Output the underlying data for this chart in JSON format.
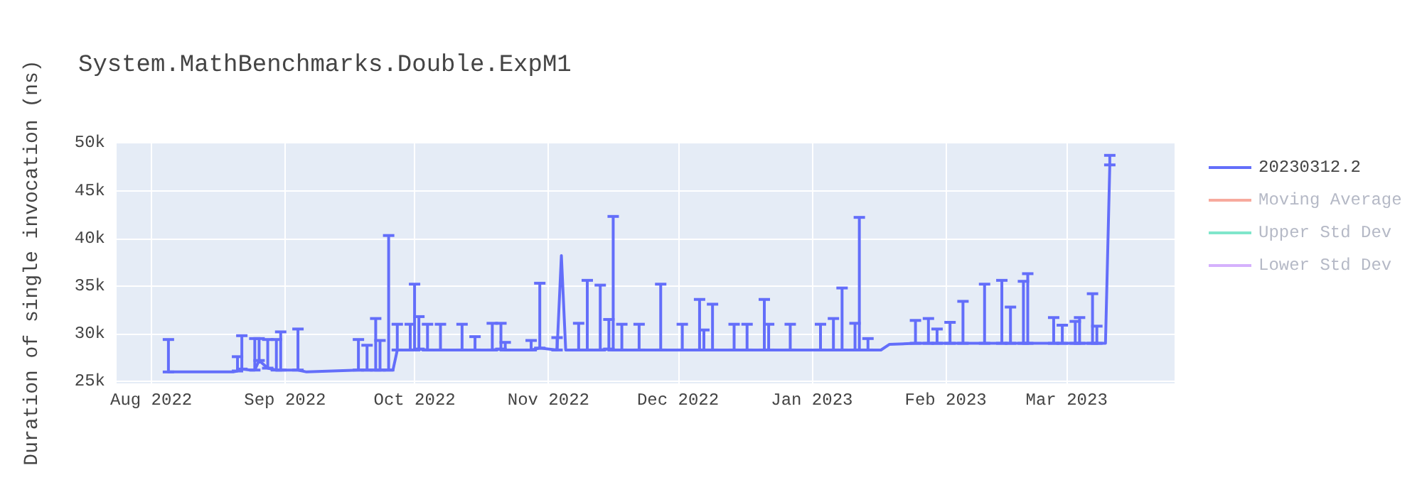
{
  "chart_data": {
    "type": "line",
    "title": "System.MathBenchmarks.Double.ExpM1",
    "ylabel": "Duration of single invocation (ns)",
    "x": [
      "2022-08-05",
      "2022-08-20",
      "2022-08-21",
      "2022-08-22",
      "2022-08-24",
      "2022-08-25",
      "2022-08-26",
      "2022-08-28",
      "2022-08-30",
      "2022-08-31",
      "2022-09-04",
      "2022-09-06",
      "2022-09-18",
      "2022-09-20",
      "2022-09-22",
      "2022-09-23",
      "2022-09-25",
      "2022-09-26",
      "2022-09-27",
      "2022-09-30",
      "2022-10-01",
      "2022-10-02",
      "2022-10-04",
      "2022-10-07",
      "2022-10-12",
      "2022-10-15",
      "2022-10-19",
      "2022-10-21",
      "2022-10-22",
      "2022-10-28",
      "2022-10-30",
      "2022-11-03",
      "2022-11-04",
      "2022-11-05",
      "2022-11-08",
      "2022-11-10",
      "2022-11-13",
      "2022-11-15",
      "2022-11-16",
      "2022-11-18",
      "2022-11-22",
      "2022-11-27",
      "2022-12-02",
      "2022-12-06",
      "2022-12-07",
      "2022-12-09",
      "2022-12-14",
      "2022-12-17",
      "2022-12-21",
      "2022-12-22",
      "2022-12-27",
      "2023-01-03",
      "2023-01-06",
      "2023-01-08",
      "2023-01-11",
      "2023-01-12",
      "2023-01-14",
      "2023-01-17",
      "2023-01-19",
      "2023-01-25",
      "2023-01-28",
      "2023-01-30",
      "2023-02-02",
      "2023-02-05",
      "2023-02-10",
      "2023-02-14",
      "2023-02-16",
      "2023-02-19",
      "2023-02-20",
      "2023-02-26",
      "2023-02-28",
      "2023-03-03",
      "2023-03-04",
      "2023-03-07",
      "2023-03-08",
      "2023-03-10",
      "2023-03-11"
    ],
    "series": [
      {
        "name": "20230312.2",
        "color": "#636efa",
        "values": [
          26000,
          26000,
          26100,
          26300,
          26200,
          26200,
          27200,
          26400,
          26200,
          26200,
          26200,
          26000,
          26200,
          26200,
          26200,
          26200,
          26200,
          26200,
          28300,
          28300,
          28300,
          28400,
          28300,
          28300,
          28300,
          28300,
          28300,
          28400,
          28300,
          28300,
          28500,
          28300,
          38200,
          28300,
          28300,
          28300,
          28300,
          28400,
          28300,
          28300,
          28300,
          28300,
          28300,
          28300,
          28300,
          28300,
          28300,
          28300,
          28300,
          28300,
          28300,
          28300,
          28300,
          28300,
          28300,
          28300,
          28300,
          28300,
          28900,
          29000,
          29000,
          29000,
          29000,
          29000,
          29000,
          29000,
          29000,
          29000,
          29000,
          29000,
          29000,
          29000,
          29000,
          29000,
          29000,
          29000,
          47700
        ],
        "errors": [
          [
            26000,
            29400
          ],
          null,
          [
            26100,
            27600
          ],
          [
            26300,
            29800
          ],
          null,
          [
            26200,
            29500
          ],
          [
            27200,
            29500
          ],
          [
            26400,
            29400
          ],
          [
            26200,
            29400
          ],
          [
            26200,
            30200
          ],
          [
            26200,
            30500
          ],
          null,
          [
            26200,
            29400
          ],
          [
            26200,
            28800
          ],
          [
            26200,
            31600
          ],
          [
            26200,
            29300
          ],
          [
            26200,
            40300
          ],
          null,
          [
            28300,
            31000
          ],
          [
            28300,
            31000
          ],
          [
            28300,
            35200
          ],
          [
            28400,
            31800
          ],
          [
            28300,
            31000
          ],
          [
            28300,
            31000
          ],
          [
            28300,
            31000
          ],
          [
            28300,
            29700
          ],
          [
            28300,
            31100
          ],
          [
            28400,
            31100
          ],
          [
            28300,
            29100
          ],
          [
            28300,
            29300
          ],
          [
            28500,
            35300
          ],
          [
            28300,
            29600
          ],
          null,
          null,
          [
            28300,
            31100
          ],
          [
            28300,
            35600
          ],
          [
            28300,
            35100
          ],
          [
            28400,
            31500
          ],
          [
            28300,
            42300
          ],
          [
            28300,
            31000
          ],
          [
            28300,
            31000
          ],
          [
            28300,
            35200
          ],
          [
            28300,
            31000
          ],
          [
            28300,
            33600
          ],
          [
            28300,
            30400
          ],
          [
            28300,
            33100
          ],
          [
            28300,
            31000
          ],
          [
            28300,
            31000
          ],
          [
            28300,
            33600
          ],
          [
            28300,
            31000
          ],
          [
            28300,
            31000
          ],
          [
            28300,
            31000
          ],
          [
            28300,
            31600
          ],
          [
            28300,
            34800
          ],
          [
            28300,
            31100
          ],
          [
            28300,
            42200
          ],
          [
            28300,
            29500
          ],
          null,
          null,
          [
            29000,
            31400
          ],
          [
            29000,
            31600
          ],
          [
            29000,
            30500
          ],
          [
            29000,
            31200
          ],
          [
            29000,
            33400
          ],
          [
            29000,
            35200
          ],
          [
            29000,
            35600
          ],
          [
            29000,
            32800
          ],
          [
            29000,
            35500
          ],
          [
            29000,
            36300
          ],
          [
            29000,
            31700
          ],
          [
            29000,
            30900
          ],
          [
            29000,
            31300
          ],
          [
            29000,
            31700
          ],
          [
            29000,
            34200
          ],
          [
            29000,
            30800
          ],
          null,
          [
            47700,
            48700
          ]
        ]
      },
      {
        "name": "Moving Average",
        "color": "#f7aa9d",
        "values": [
          null,
          null,
          null,
          null,
          null,
          null,
          null,
          null,
          null,
          null,
          null,
          null,
          null,
          null,
          null,
          null,
          null,
          null,
          null,
          null,
          null,
          null,
          null,
          null,
          null,
          null,
          null,
          null,
          null,
          null,
          null,
          null,
          null,
          null,
          null,
          null,
          null,
          null,
          null,
          null,
          null,
          null,
          null,
          null,
          null,
          null,
          null,
          null,
          null,
          null,
          null,
          null,
          null,
          null,
          null,
          null,
          null,
          null,
          null,
          null,
          null,
          null,
          null,
          null,
          null,
          null,
          null,
          null,
          null,
          null,
          null,
          null,
          null,
          null,
          null,
          null,
          null
        ]
      },
      {
        "name": "Upper Std Dev",
        "color": "#80e6cb",
        "values": [
          null,
          null,
          null,
          null,
          null,
          null,
          null,
          null,
          null,
          null,
          null,
          null,
          null,
          null,
          null,
          null,
          null,
          null,
          null,
          null,
          null,
          null,
          null,
          null,
          null,
          null,
          null,
          null,
          null,
          null,
          null,
          null,
          null,
          null,
          null,
          null,
          null,
          null,
          null,
          null,
          null,
          null,
          null,
          null,
          null,
          null,
          null,
          null,
          null,
          null,
          null,
          null,
          null,
          null,
          null,
          null,
          null,
          null,
          null,
          null,
          null,
          null,
          null,
          null,
          null,
          null,
          null,
          null,
          null,
          null,
          null,
          null,
          null,
          null,
          null,
          null,
          null
        ]
      },
      {
        "name": "Lower Std Dev",
        "color": "#d5b1fd",
        "values": [
          null,
          null,
          null,
          null,
          null,
          null,
          null,
          null,
          null,
          null,
          null,
          null,
          null,
          null,
          null,
          null,
          null,
          null,
          null,
          null,
          null,
          null,
          null,
          null,
          null,
          null,
          null,
          null,
          null,
          null,
          null,
          null,
          null,
          null,
          null,
          null,
          null,
          null,
          null,
          null,
          null,
          null,
          null,
          null,
          null,
          null,
          null,
          null,
          null,
          null,
          null,
          null,
          null,
          null,
          null,
          null,
          null,
          null,
          null,
          null,
          null,
          null,
          null,
          null,
          null,
          null,
          null,
          null,
          null,
          null,
          null,
          null,
          null,
          null,
          null,
          null,
          null
        ]
      }
    ],
    "xlim": [
      "2022-07-24",
      "2023-03-26"
    ],
    "xticks": [
      {
        "value": "2022-08-01",
        "label": "Aug 2022"
      },
      {
        "value": "2022-09-01",
        "label": "Sep 2022"
      },
      {
        "value": "2022-10-01",
        "label": "Oct 2022"
      },
      {
        "value": "2022-11-01",
        "label": "Nov 2022"
      },
      {
        "value": "2022-12-01",
        "label": "Dec 2022"
      },
      {
        "value": "2023-01-01",
        "label": "Jan 2023"
      },
      {
        "value": "2023-02-01",
        "label": "Feb 2023"
      },
      {
        "value": "2023-03-01",
        "label": "Mar 2023"
      }
    ],
    "ylim": [
      24800,
      50100
    ],
    "yticks": [
      {
        "value": 25000,
        "label": "25k"
      },
      {
        "value": 30000,
        "label": "30k"
      },
      {
        "value": 35000,
        "label": "35k"
      },
      {
        "value": 40000,
        "label": "40k"
      },
      {
        "value": 45000,
        "label": "45k"
      },
      {
        "value": 50000,
        "label": "50k"
      }
    ],
    "grid": true,
    "legend": "top right",
    "marker": "none",
    "line_style": "solid"
  }
}
